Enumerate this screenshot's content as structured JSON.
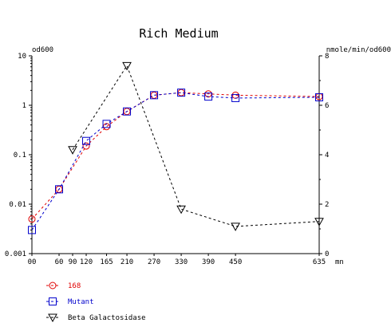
{
  "chart_data": {
    "type": "line",
    "title": "Rich Medium",
    "left_axis_label": "od600",
    "right_axis_label": "nmole/min/od600",
    "x_unit": "mn",
    "x_ticks": [
      "00",
      "60",
      "90",
      "120",
      "165",
      "210",
      "270",
      "330",
      "390",
      "450",
      "635"
    ],
    "x_tick_values": [
      0,
      60,
      90,
      120,
      165,
      210,
      270,
      330,
      390,
      450,
      635
    ],
    "xlim": [
      0,
      635
    ],
    "left_scale": "log",
    "left_ylim": [
      0.001,
      10
    ],
    "left_ticks": [
      "10",
      "1",
      "0.1",
      "0.01",
      "0.001"
    ],
    "left_tick_values": [
      10,
      1,
      0.1,
      0.01,
      0.001
    ],
    "right_ylim": [
      0,
      8
    ],
    "right_ticks": [
      "0",
      "2",
      "4",
      "6",
      "8"
    ],
    "right_tick_values": [
      0,
      2,
      4,
      6,
      8
    ],
    "grid": false,
    "legend_position": "bottom-left",
    "series": [
      {
        "name": "168",
        "axis": "left",
        "color": "#e00000",
        "marker": "circle",
        "x": [
          0,
          60,
          120,
          165,
          210,
          270,
          330,
          390,
          450,
          635
        ],
        "y": [
          0.005,
          0.02,
          0.15,
          0.37,
          0.75,
          1.6,
          1.8,
          1.7,
          1.6,
          1.5
        ]
      },
      {
        "name": "Mutant",
        "axis": "left",
        "color": "#0000cc",
        "marker": "square",
        "x": [
          0,
          60,
          120,
          165,
          210,
          270,
          330,
          390,
          450,
          635
        ],
        "y": [
          0.003,
          0.02,
          0.19,
          0.42,
          0.75,
          1.6,
          1.8,
          1.5,
          1.4,
          1.45
        ]
      },
      {
        "name": "Beta Galactosidase",
        "axis": "right",
        "color": "#000000",
        "marker": "triangle-down",
        "x": [
          90,
          210,
          330,
          450,
          635
        ],
        "y": [
          4.2,
          7.6,
          1.8,
          1.1,
          1.3
        ]
      }
    ]
  }
}
